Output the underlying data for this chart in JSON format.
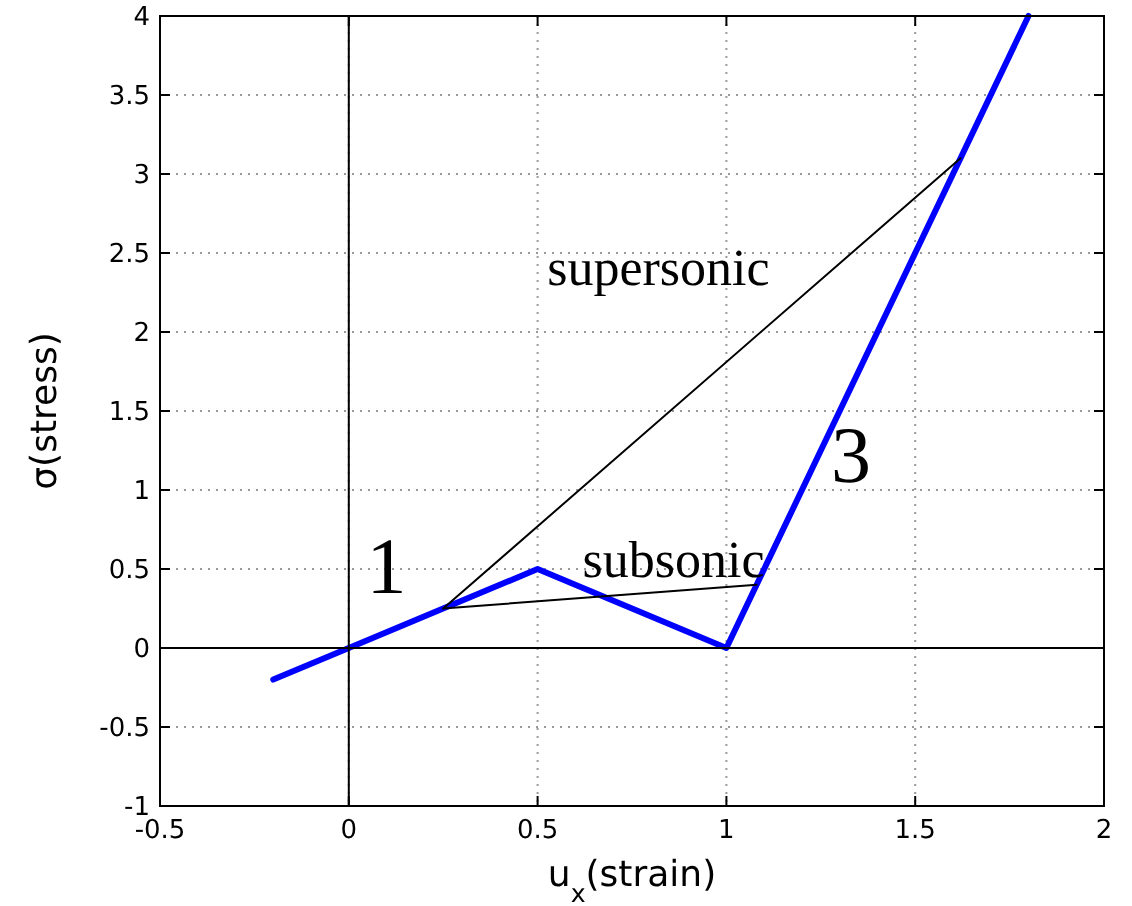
{
  "chart_data": {
    "type": "line",
    "xlabel": "u$_{x}$(strain)",
    "ylabel": "σ(stress)",
    "xlim": [
      -0.5,
      2
    ],
    "xticks": [
      -0.5,
      0,
      0.5,
      1,
      1.5,
      2
    ],
    "ylim": [
      -1,
      4
    ],
    "yticks": [
      -1,
      -0.5,
      0,
      0.5,
      1,
      1.5,
      2,
      2.5,
      3,
      3.5,
      4
    ],
    "grid": true,
    "line_style": "solid",
    "marker": "none",
    "series": [
      {
        "color": "#0000ff",
        "x": [
          -0.2,
          0,
          0.5,
          1,
          1.8
        ],
        "values": [
          -0.2,
          0,
          0.5,
          0,
          4
        ]
      },
      {
        "color": "#000000",
        "x": [
          0.25,
          1.62
        ],
        "values": [
          0.25,
          3.1
        ]
      },
      {
        "color": "#000000",
        "x": [
          0.25,
          1.08
        ],
        "values": [
          0.25,
          0.4
        ]
      },
      {
        "color": "#000000",
        "x": [
          0,
          0
        ],
        "values": [
          -1,
          4
        ]
      },
      {
        "color": "#000000",
        "x": [
          -0.5,
          2
        ],
        "values": [
          0,
          0
        ]
      }
    ],
    "annotations": [
      "1",
      "3",
      "supersonic",
      "subsonic"
    ]
  }
}
